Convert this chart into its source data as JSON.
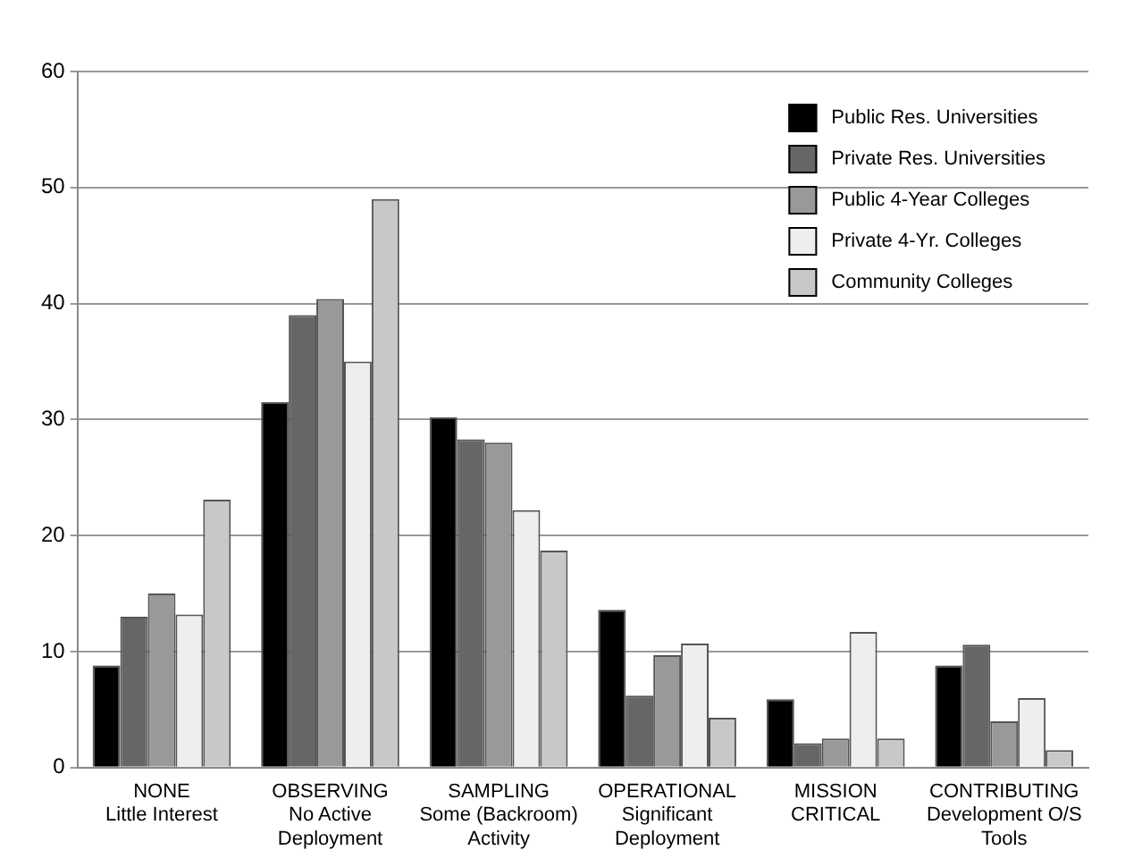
{
  "chart_data": {
    "type": "bar",
    "categories": [
      "NONE\nLittle Interest",
      "OBSERVING\nNo Active\nDeployment",
      "SAMPLING\nSome (Backroom)\nActivity",
      "OPERATIONAL\nSignificant\nDeployment",
      "MISSION\nCRITICAL",
      "CONTRIBUTING\nDevelopment O/S\nTools"
    ],
    "series": [
      {
        "name": "Public Res. Universities",
        "color": "#000000",
        "values": [
          8.8,
          31.5,
          30.2,
          13.6,
          5.9,
          8.8
        ]
      },
      {
        "name": "Private Res. Universities",
        "color": "#666666",
        "values": [
          13,
          39,
          28.3,
          6.2,
          2.1,
          10.6
        ]
      },
      {
        "name": "Public 4-Year Colleges",
        "color": "#999999",
        "values": [
          15,
          40.4,
          28,
          9.7,
          2.5,
          4
        ]
      },
      {
        "name": "Private 4-Yr. Colleges",
        "color": "#eeeeee",
        "values": [
          13.2,
          35,
          22.2,
          10.7,
          11.7,
          6
        ]
      },
      {
        "name": "Community Colleges",
        "color": "#c8c8c8",
        "values": [
          23.1,
          49,
          18.7,
          4.3,
          2.5,
          1.5
        ]
      }
    ],
    "ylim": [
      0,
      60
    ],
    "yticks": [
      0,
      10,
      20,
      30,
      40,
      50,
      60
    ],
    "grid": "y",
    "legend": "top right"
  }
}
